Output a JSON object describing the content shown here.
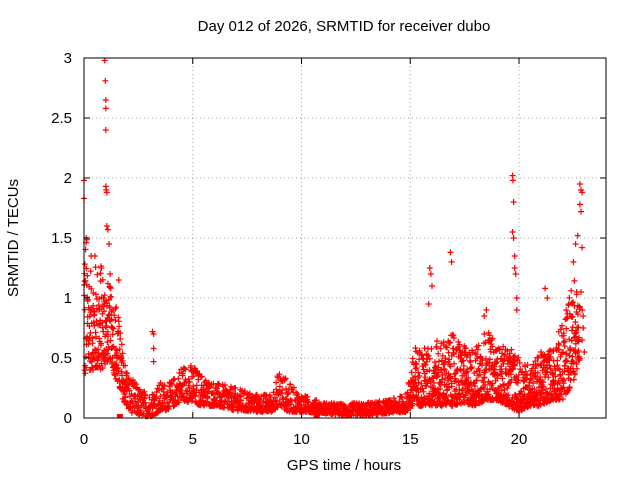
{
  "chart_data": {
    "type": "scatter",
    "title": "Day 012 of 2026, SRMTID for receiver dubo",
    "xlabel": "GPS time / hours",
    "ylabel": "SRMTID / TECUs",
    "xlim": [
      0,
      24
    ],
    "ylim": [
      0,
      3
    ],
    "x_ticks": [
      0,
      5,
      10,
      15,
      20
    ],
    "x_tick_labels": [
      "0",
      "5",
      "10",
      "15",
      "20"
    ],
    "y_ticks": [
      0,
      0.5,
      1,
      1.5,
      2,
      2.5,
      3
    ],
    "y_tick_labels": [
      "0",
      "0.5",
      "1",
      "1.5",
      "2",
      "2.5",
      "3"
    ],
    "grid": true,
    "marker": "plus",
    "series": [
      {
        "name": "SRMTID",
        "color": "#ff0000",
        "note": "envelope of the dense point cloud (hours, TECU)",
        "envelope": [
          [
            0.0,
            0.3,
            1.8
          ],
          [
            0.2,
            0.4,
            1.4
          ],
          [
            0.5,
            0.4,
            1.3
          ],
          [
            0.8,
            0.4,
            1.3
          ],
          [
            1.2,
            0.5,
            1.1
          ],
          [
            1.5,
            0.3,
            1.0
          ],
          [
            1.8,
            0.15,
            0.55
          ],
          [
            2.1,
            0.05,
            0.35
          ],
          [
            2.6,
            0.02,
            0.25
          ],
          [
            3.0,
            0.01,
            0.2
          ],
          [
            3.5,
            0.05,
            0.3
          ],
          [
            4.0,
            0.08,
            0.3
          ],
          [
            4.5,
            0.15,
            0.45
          ],
          [
            5.0,
            0.12,
            0.45
          ],
          [
            5.5,
            0.1,
            0.35
          ],
          [
            6.0,
            0.1,
            0.3
          ],
          [
            7.0,
            0.06,
            0.25
          ],
          [
            8.0,
            0.05,
            0.2
          ],
          [
            8.6,
            0.05,
            0.2
          ],
          [
            9.0,
            0.1,
            0.42
          ],
          [
            9.4,
            0.05,
            0.3
          ],
          [
            10.0,
            0.05,
            0.2
          ],
          [
            11.0,
            0.04,
            0.13
          ],
          [
            12.0,
            0.02,
            0.12
          ],
          [
            13.0,
            0.02,
            0.13
          ],
          [
            14.0,
            0.04,
            0.15
          ],
          [
            14.8,
            0.05,
            0.2
          ],
          [
            15.2,
            0.1,
            0.6
          ],
          [
            15.8,
            0.1,
            0.6
          ],
          [
            16.3,
            0.1,
            0.65
          ],
          [
            17.0,
            0.1,
            0.7
          ],
          [
            17.5,
            0.12,
            0.6
          ],
          [
            18.0,
            0.1,
            0.6
          ],
          [
            18.5,
            0.15,
            0.75
          ],
          [
            19.0,
            0.15,
            0.6
          ],
          [
            19.5,
            0.1,
            0.6
          ],
          [
            20.0,
            0.05,
            0.5
          ],
          [
            20.5,
            0.1,
            0.45
          ],
          [
            21.0,
            0.1,
            0.55
          ],
          [
            21.5,
            0.15,
            0.6
          ],
          [
            22.0,
            0.15,
            0.8
          ],
          [
            22.5,
            0.3,
            1.2
          ],
          [
            22.8,
            0.5,
            1.0
          ]
        ],
        "highlights": [
          [
            0.0,
            1.98
          ],
          [
            0.0,
            1.83
          ],
          [
            0.1,
            1.5
          ],
          [
            0.95,
            2.98
          ],
          [
            0.98,
            2.81
          ],
          [
            1.0,
            2.65
          ],
          [
            1.0,
            2.58
          ],
          [
            1.0,
            2.4
          ],
          [
            1.0,
            1.93
          ],
          [
            1.02,
            1.9
          ],
          [
            1.05,
            1.88
          ],
          [
            1.05,
            1.6
          ],
          [
            1.1,
            1.57
          ],
          [
            1.15,
            1.45
          ],
          [
            0.5,
            1.35
          ],
          [
            0.8,
            1.25
          ],
          [
            1.2,
            1.2
          ],
          [
            1.6,
            1.15
          ],
          [
            3.15,
            0.72
          ],
          [
            3.2,
            0.7
          ],
          [
            3.2,
            0.58
          ],
          [
            3.2,
            0.47
          ],
          [
            15.9,
            1.25
          ],
          [
            15.95,
            1.2
          ],
          [
            16.0,
            1.1
          ],
          [
            15.85,
            0.95
          ],
          [
            16.85,
            1.38
          ],
          [
            16.9,
            1.3
          ],
          [
            18.5,
            0.9
          ],
          [
            18.4,
            0.85
          ],
          [
            19.7,
            2.02
          ],
          [
            19.72,
            1.98
          ],
          [
            19.75,
            1.8
          ],
          [
            19.7,
            1.55
          ],
          [
            19.75,
            1.5
          ],
          [
            19.8,
            1.35
          ],
          [
            19.8,
            1.25
          ],
          [
            19.85,
            1.2
          ],
          [
            19.9,
            1.0
          ],
          [
            19.9,
            0.9
          ],
          [
            21.2,
            1.08
          ],
          [
            21.3,
            1.0
          ],
          [
            22.8,
            1.95
          ],
          [
            22.85,
            1.9
          ],
          [
            22.9,
            1.88
          ],
          [
            22.8,
            1.78
          ],
          [
            22.85,
            1.72
          ],
          [
            22.7,
            1.52
          ],
          [
            22.6,
            1.45
          ],
          [
            22.9,
            1.42
          ],
          [
            22.5,
            1.3
          ],
          [
            22.85,
            1.05
          ],
          [
            22.9,
            0.9
          ],
          [
            22.95,
            0.85
          ],
          [
            22.95,
            0.75
          ],
          [
            22.9,
            0.65
          ],
          [
            23.0,
            0.55
          ],
          [
            22.7,
            0.5
          ]
        ],
        "baseline_squares": [
          1.65,
          10.7
        ]
      }
    ]
  }
}
